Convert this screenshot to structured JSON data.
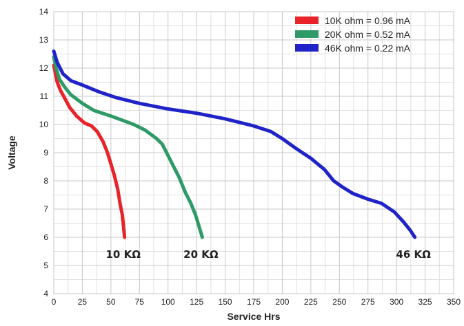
{
  "chart_data": {
    "type": "line",
    "title": "",
    "xlabel": "Service Hrs",
    "ylabel": "Voltage",
    "xlim": [
      0,
      350
    ],
    "ylim": [
      4,
      14
    ],
    "x_ticks": [
      0,
      25,
      50,
      75,
      100,
      125,
      150,
      175,
      200,
      225,
      250,
      275,
      300,
      325,
      350
    ],
    "y_ticks": [
      4,
      5,
      6,
      7,
      8,
      9,
      10,
      11,
      12,
      13,
      14
    ],
    "grid": true,
    "legend_position": "top-right",
    "series": [
      {
        "name": "10K ohm  =  0.96 mA",
        "end_label": "10 KΩ",
        "color": "#e8232a",
        "points": [
          [
            0,
            12.1
          ],
          [
            1,
            11.9
          ],
          [
            3,
            11.5
          ],
          [
            6,
            11.2
          ],
          [
            10,
            10.9
          ],
          [
            14,
            10.6
          ],
          [
            20,
            10.3
          ],
          [
            27,
            10.05
          ],
          [
            33,
            9.95
          ],
          [
            38,
            9.75
          ],
          [
            43,
            9.4
          ],
          [
            47,
            9.0
          ],
          [
            50,
            8.6
          ],
          [
            53,
            8.2
          ],
          [
            56,
            7.7
          ],
          [
            58,
            7.2
          ],
          [
            60,
            6.8
          ],
          [
            61,
            6.4
          ],
          [
            62,
            6.0
          ]
        ]
      },
      {
        "name": "20K ohm  =  0.52 mA",
        "end_label": "20 KΩ",
        "color": "#2e9a68",
        "points": [
          [
            0,
            12.4
          ],
          [
            2,
            12.0
          ],
          [
            5,
            11.6
          ],
          [
            10,
            11.3
          ],
          [
            15,
            11.05
          ],
          [
            25,
            10.75
          ],
          [
            35,
            10.5
          ],
          [
            50,
            10.3
          ],
          [
            60,
            10.15
          ],
          [
            70,
            10.0
          ],
          [
            80,
            9.8
          ],
          [
            90,
            9.5
          ],
          [
            95,
            9.3
          ],
          [
            100,
            8.9
          ],
          [
            105,
            8.5
          ],
          [
            110,
            8.1
          ],
          [
            115,
            7.6
          ],
          [
            120,
            7.2
          ],
          [
            124,
            6.8
          ],
          [
            127,
            6.4
          ],
          [
            130,
            6.0
          ]
        ]
      },
      {
        "name": "46K ohm  =  0.22 mA",
        "end_label": "46 KΩ",
        "color": "#1f23c8",
        "points": [
          [
            0,
            12.6
          ],
          [
            3,
            12.2
          ],
          [
            8,
            11.8
          ],
          [
            15,
            11.55
          ],
          [
            25,
            11.4
          ],
          [
            40,
            11.15
          ],
          [
            55,
            10.95
          ],
          [
            75,
            10.75
          ],
          [
            100,
            10.55
          ],
          [
            125,
            10.4
          ],
          [
            150,
            10.2
          ],
          [
            175,
            9.95
          ],
          [
            190,
            9.75
          ],
          [
            200,
            9.5
          ],
          [
            212,
            9.15
          ],
          [
            225,
            8.8
          ],
          [
            237,
            8.4
          ],
          [
            245,
            8.0
          ],
          [
            252,
            7.8
          ],
          [
            262,
            7.55
          ],
          [
            275,
            7.35
          ],
          [
            287,
            7.2
          ],
          [
            298,
            6.9
          ],
          [
            306,
            6.55
          ],
          [
            312,
            6.25
          ],
          [
            316,
            6.0
          ]
        ]
      }
    ]
  }
}
